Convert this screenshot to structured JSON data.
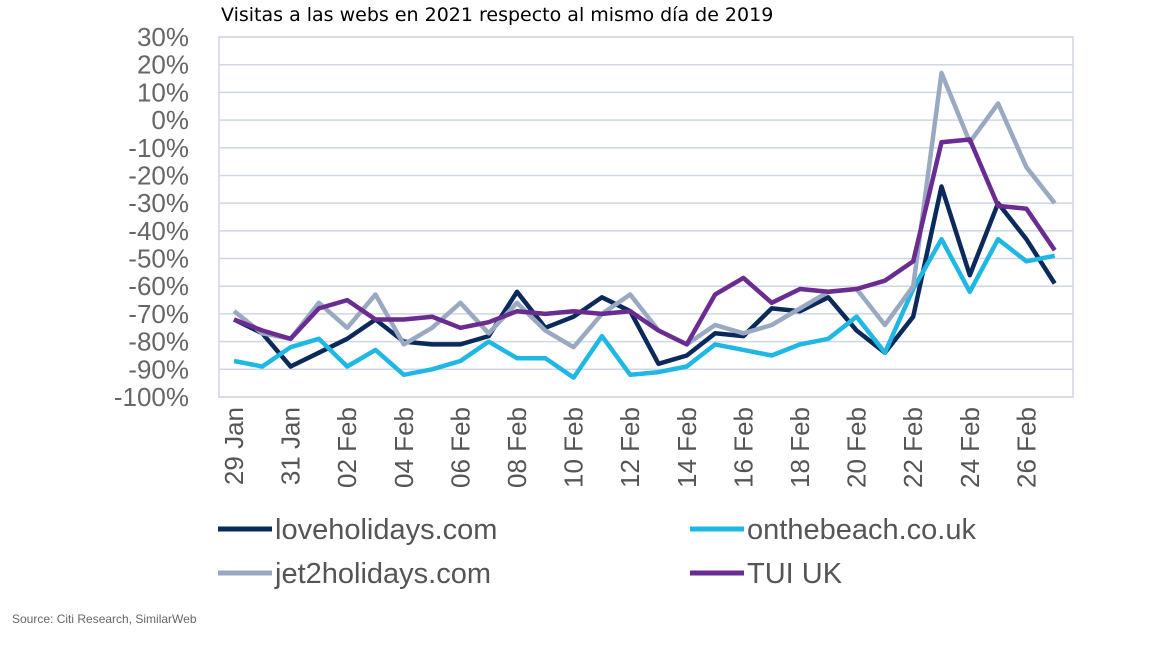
{
  "chart_data": {
    "type": "line",
    "title": "Visitas a las webs en 2021 respecto al mismo día de 2019",
    "source": "Source: Citi Research, SimilarWeb",
    "xlabel": "",
    "ylabel": "",
    "ylim": [
      -100,
      30
    ],
    "y_unit": "%",
    "yticks": [
      "30%",
      "20%",
      "10%",
      "0%",
      "-10%",
      "-20%",
      "-30%",
      "-40%",
      "-50%",
      "-60%",
      "-70%",
      "-80%",
      "-90%",
      "-100%"
    ],
    "ytick_values": [
      30,
      20,
      10,
      0,
      -10,
      -20,
      -30,
      -40,
      -50,
      -60,
      -70,
      -80,
      -90,
      -100
    ],
    "x": [
      "29 Jan",
      "30 Jan",
      "31 Jan",
      "01 Feb",
      "02 Feb",
      "03 Feb",
      "04 Feb",
      "05 Feb",
      "06 Feb",
      "07 Feb",
      "08 Feb",
      "09 Feb",
      "10 Feb",
      "11 Feb",
      "12 Feb",
      "13 Feb",
      "14 Feb",
      "15 Feb",
      "16 Feb",
      "17 Feb",
      "18 Feb",
      "19 Feb",
      "20 Feb",
      "21 Feb",
      "22 Feb",
      "23 Feb",
      "24 Feb",
      "25 Feb",
      "26 Feb",
      "27 Feb"
    ],
    "xtick_labels": [
      "29 Jan",
      "31 Jan",
      "02 Feb",
      "04 Feb",
      "06 Feb",
      "08 Feb",
      "10 Feb",
      "12 Feb",
      "14 Feb",
      "16 Feb",
      "18 Feb",
      "20 Feb",
      "22 Feb",
      "24 Feb",
      "26 Feb"
    ],
    "grid": true,
    "legend_position": "bottom",
    "series": [
      {
        "name": "loveholidays.com",
        "color": "#0b2a5b",
        "values": [
          -72,
          -77,
          -89,
          -84,
          -79,
          -72,
          -80,
          -81,
          -81,
          -78,
          -62,
          -75,
          -71,
          -64,
          -69,
          -88,
          -85,
          -77,
          -78,
          -68,
          -69,
          -64,
          -76,
          -84,
          -71,
          -24,
          -56,
          -30,
          -43,
          -59
        ]
      },
      {
        "name": "onthebeach.co.uk",
        "color": "#1fb7e4",
        "values": [
          -87,
          -89,
          -82,
          -79,
          -89,
          -83,
          -92,
          -90,
          -87,
          -80,
          -86,
          -86,
          -93,
          -78,
          -92,
          -91,
          -89,
          -81,
          -83,
          -85,
          -81,
          -79,
          -71,
          -84,
          -61,
          -43,
          -62,
          -43,
          -51,
          -49
        ]
      },
      {
        "name": "jet2holidays.com",
        "color": "#9aa9c2",
        "values": [
          -69,
          -77,
          -79,
          -66,
          -75,
          -63,
          -81,
          -75,
          -66,
          -77,
          -66,
          -76,
          -82,
          -70,
          -63,
          -76,
          -81,
          -74,
          -77,
          -74,
          -68,
          -62,
          -61,
          -74,
          -60,
          17,
          -8,
          6,
          -17,
          -30
        ]
      },
      {
        "name": "TUI UK",
        "color": "#6a2c91",
        "values": [
          -72,
          -76,
          -79,
          -68,
          -65,
          -72,
          -72,
          -71,
          -75,
          -73,
          -69,
          -70,
          -69,
          -70,
          -69,
          -76,
          -81,
          -63,
          -57,
          -66,
          -61,
          -62,
          -61,
          -58,
          -51,
          -8,
          -7,
          -31,
          -32,
          -47
        ]
      }
    ]
  }
}
